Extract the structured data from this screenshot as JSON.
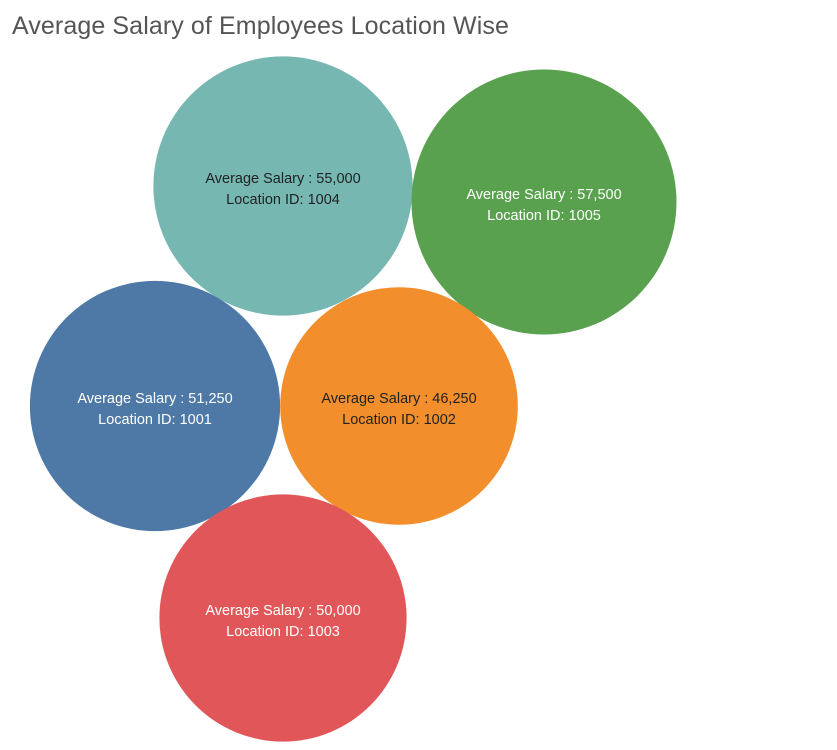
{
  "chart_data": {
    "type": "bubble",
    "title": "Average Salary of Employees Location Wise",
    "measure_label": "Average Salary",
    "dimension_label": "Location ID",
    "bubbles": [
      {
        "location_id": "1004",
        "average_salary": "55,000",
        "value": 55000,
        "color": "#76b7b2",
        "text_color": "#222222"
      },
      {
        "location_id": "1005",
        "average_salary": "57,500",
        "value": 57500,
        "color": "#59a14f",
        "text_color": "#ffffff"
      },
      {
        "location_id": "1001",
        "average_salary": "51,250",
        "value": 51250,
        "color": "#4e79a7",
        "text_color": "#ffffff"
      },
      {
        "location_id": "1002",
        "average_salary": "46,250",
        "value": 46250,
        "color": "#f28e2b",
        "text_color": "#222222"
      },
      {
        "location_id": "1003",
        "average_salary": "50,000",
        "value": 50000,
        "color": "#e15759",
        "text_color": "#ffffff"
      }
    ]
  }
}
